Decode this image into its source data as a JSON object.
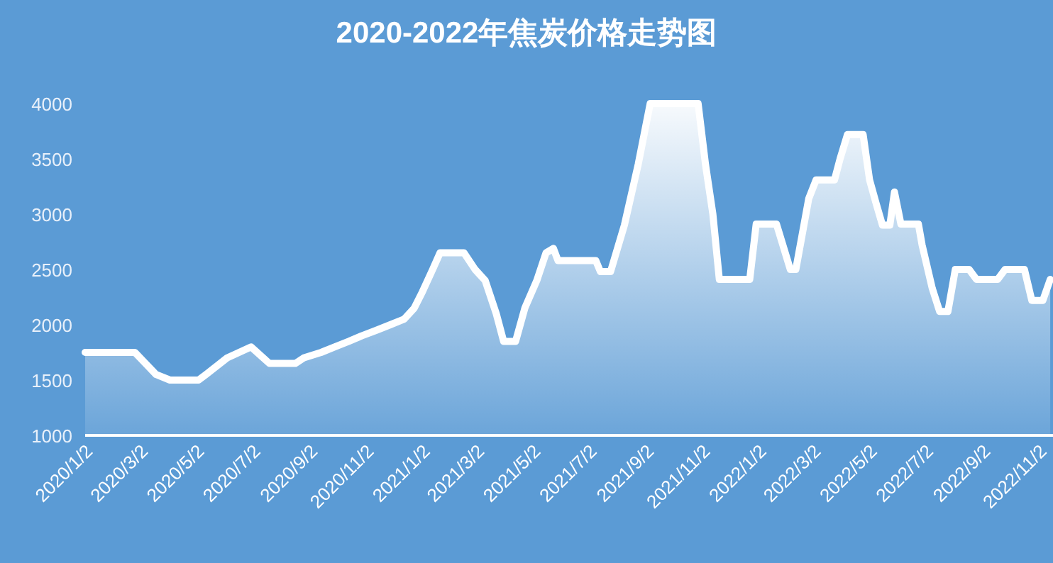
{
  "chart_data": {
    "type": "area",
    "title": "2020-2022年焦炭价格走势图",
    "x": [
      "2020-01-02",
      "2020-02-25",
      "2020-03-19",
      "2020-04-03",
      "2020-05-04",
      "2020-05-12",
      "2020-06-04",
      "2020-06-30",
      "2020-07-20",
      "2020-08-17",
      "2020-08-26",
      "2020-09-14",
      "2020-09-29",
      "2020-10-14",
      "2020-10-28",
      "2020-11-13",
      "2020-11-28",
      "2020-12-13",
      "2020-12-24",
      "2021-01-02",
      "2021-01-13",
      "2021-01-21",
      "2021-02-16",
      "2021-02-28",
      "2021-03-11",
      "2021-03-23",
      "2021-03-31",
      "2021-04-13",
      "2021-04-23",
      "2021-05-06",
      "2021-05-16",
      "2021-05-24",
      "2021-05-29",
      "2021-07-09",
      "2021-07-14",
      "2021-07-25",
      "2021-08-09",
      "2021-08-24",
      "2021-09-06",
      "2021-10-28",
      "2021-11-05",
      "2021-11-13",
      "2021-11-20",
      "2021-12-23",
      "2021-12-30",
      "2022-01-21",
      "2022-02-05",
      "2022-02-11",
      "2022-02-25",
      "2022-03-05",
      "2022-03-25",
      "2022-03-31",
      "2022-04-08",
      "2022-04-25",
      "2022-05-02",
      "2022-05-09",
      "2022-05-16",
      "2022-05-24",
      "2022-05-29",
      "2022-06-05",
      "2022-06-24",
      "2022-06-28",
      "2022-07-09",
      "2022-07-17",
      "2022-07-26",
      "2022-08-03",
      "2022-08-18",
      "2022-08-26",
      "2022-09-18",
      "2022-09-26",
      "2022-10-17",
      "2022-10-25",
      "2022-11-06",
      "2022-11-14"
    ],
    "series": [
      {
        "color": "#ffffff",
        "values": [
          1750,
          1750,
          1550,
          1500,
          1500,
          1550,
          1700,
          1800,
          1650,
          1650,
          1700,
          1750,
          1800,
          1850,
          1900,
          1950,
          2000,
          2050,
          2150,
          2300,
          2500,
          2650,
          2650,
          2500,
          2400,
          2100,
          1850,
          1850,
          2150,
          2400,
          2650,
          2690,
          2580,
          2580,
          2480,
          2480,
          2900,
          3450,
          4000,
          4000,
          3450,
          3000,
          2410,
          2410,
          2910,
          2910,
          2500,
          2500,
          3140,
          3310,
          3310,
          3500,
          3720,
          3720,
          3310,
          3100,
          2900,
          2900,
          3200,
          2910,
          2910,
          2720,
          2330,
          2120,
          2120,
          2500,
          2500,
          2410,
          2410,
          2500,
          2500,
          2220,
          2220,
          2410
        ]
      }
    ],
    "xlim": [
      "2020-01-02",
      "2022-11-17"
    ],
    "xticks": [
      {
        "value": "2020-01-02",
        "label": "2020/1/2"
      },
      {
        "value": "2020-03-02",
        "label": "2020/3/2"
      },
      {
        "value": "2020-05-02",
        "label": "2020/5/2"
      },
      {
        "value": "2020-07-02",
        "label": "2020/7/2"
      },
      {
        "value": "2020-09-02",
        "label": "2020/9/2"
      },
      {
        "value": "2020-11-02",
        "label": "2020/11/2"
      },
      {
        "value": "2021-01-02",
        "label": "2021/1/2"
      },
      {
        "value": "2021-03-02",
        "label": "2021/3/2"
      },
      {
        "value": "2021-05-02",
        "label": "2021/5/2"
      },
      {
        "value": "2021-07-02",
        "label": "2021/7/2"
      },
      {
        "value": "2021-09-02",
        "label": "2021/9/2"
      },
      {
        "value": "2021-11-02",
        "label": "2021/11/2"
      },
      {
        "value": "2022-01-02",
        "label": "2022/1/2"
      },
      {
        "value": "2022-03-02",
        "label": "2022/3/2"
      },
      {
        "value": "2022-05-02",
        "label": "2022/5/2"
      },
      {
        "value": "2022-07-02",
        "label": "2022/7/2"
      },
      {
        "value": "2022-09-02",
        "label": "2022/9/2"
      },
      {
        "value": "2022-11-02",
        "label": "2022/11/2"
      }
    ],
    "ylim": [
      1000,
      4000
    ],
    "yticks": [
      1000,
      1500,
      2000,
      2500,
      3000,
      3500,
      4000
    ],
    "grid": false
  }
}
